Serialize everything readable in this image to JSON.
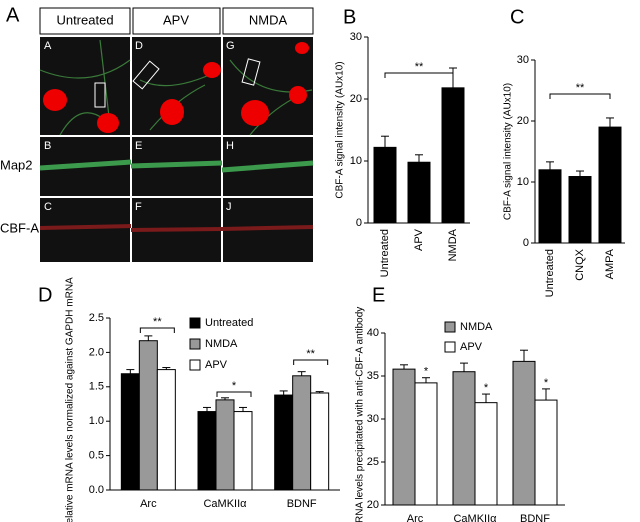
{
  "figure": {
    "panels": [
      "A",
      "B",
      "C",
      "D",
      "E"
    ],
    "columns": [
      "Untreated",
      "APV",
      "NMDA"
    ],
    "rows": [
      "Map2",
      "CBF-A"
    ],
    "sublabels": [
      [
        "A",
        "D",
        "G"
      ],
      [
        "B",
        "E",
        "H"
      ],
      [
        "C",
        "F",
        "J"
      ]
    ]
  },
  "chart_data": [
    {
      "type": "bar",
      "ylabel": "CBF-A signal intensity (AUx10)",
      "categories": [
        "Untreated",
        "APV",
        "NMDA"
      ],
      "values": [
        12.2,
        9.8,
        21.8
      ],
      "errors": [
        1.8,
        1.2,
        3.2
      ],
      "color": "#000000",
      "ylim": [
        0,
        30
      ],
      "yticks": [
        0,
        10,
        20,
        30
      ],
      "annotations": [
        "**"
      ]
    },
    {
      "type": "bar",
      "ylabel": "CBF-A signal intensity (AUx10)",
      "categories": [
        "Untreated",
        "CNQX",
        "AMPA"
      ],
      "values": [
        12,
        10.9,
        19
      ],
      "errors": [
        1.3,
        0.9,
        1.5
      ],
      "color": "#000000",
      "ylim": [
        0,
        30
      ],
      "yticks": [
        0,
        10,
        20,
        30
      ],
      "annotations": [
        "**"
      ]
    },
    {
      "type": "bar",
      "ylabel": "Relative mRNA levels normalized against GAPDH mRNA",
      "categories": [
        "Arc",
        "CaMKIIα",
        "BDNF"
      ],
      "series": [
        {
          "name": "Untreated",
          "color": "#000000",
          "values": [
            1.69,
            1.14,
            1.38
          ],
          "errors": [
            0.06,
            0.06,
            0.06
          ]
        },
        {
          "name": "NMDA",
          "color": "#999999",
          "values": [
            2.17,
            1.31,
            1.66
          ],
          "errors": [
            0.07,
            0.03,
            0.06
          ]
        },
        {
          "name": "APV",
          "color": "#ffffff",
          "values": [
            1.75,
            1.14,
            1.41
          ],
          "errors": [
            0.03,
            0.06,
            0.02
          ]
        }
      ],
      "ylim": [
        0,
        2.5
      ],
      "yticks": [
        {
          "value": 0,
          "label": "0.0"
        },
        0.5,
        {
          "value": 1,
          "label": "1.0"
        },
        1.5,
        {
          "value": 2,
          "label": "2.0"
        },
        2.5
      ],
      "annotations": [
        "**",
        "*",
        "**"
      ]
    },
    {
      "type": "bar",
      "ylabel": "mRNA levels precipitated with anti-CBF-A antibody",
      "categories": [
        "Arc",
        "CaMKIIα",
        "BDNF"
      ],
      "series": [
        {
          "name": "NMDA",
          "color": "#999999",
          "values": [
            35.8,
            35.5,
            36.7
          ],
          "errors": [
            0.5,
            1.0,
            1.3
          ]
        },
        {
          "name": "APV",
          "color": "#ffffff",
          "values": [
            34.2,
            31.9,
            32.2
          ],
          "errors": [
            0.6,
            1.0,
            1.3
          ]
        }
      ],
      "ylim": [
        20,
        40
      ],
      "yticks": [
        20,
        25,
        30,
        35,
        40
      ],
      "annotations": [
        "*",
        "*",
        "*"
      ]
    }
  ]
}
